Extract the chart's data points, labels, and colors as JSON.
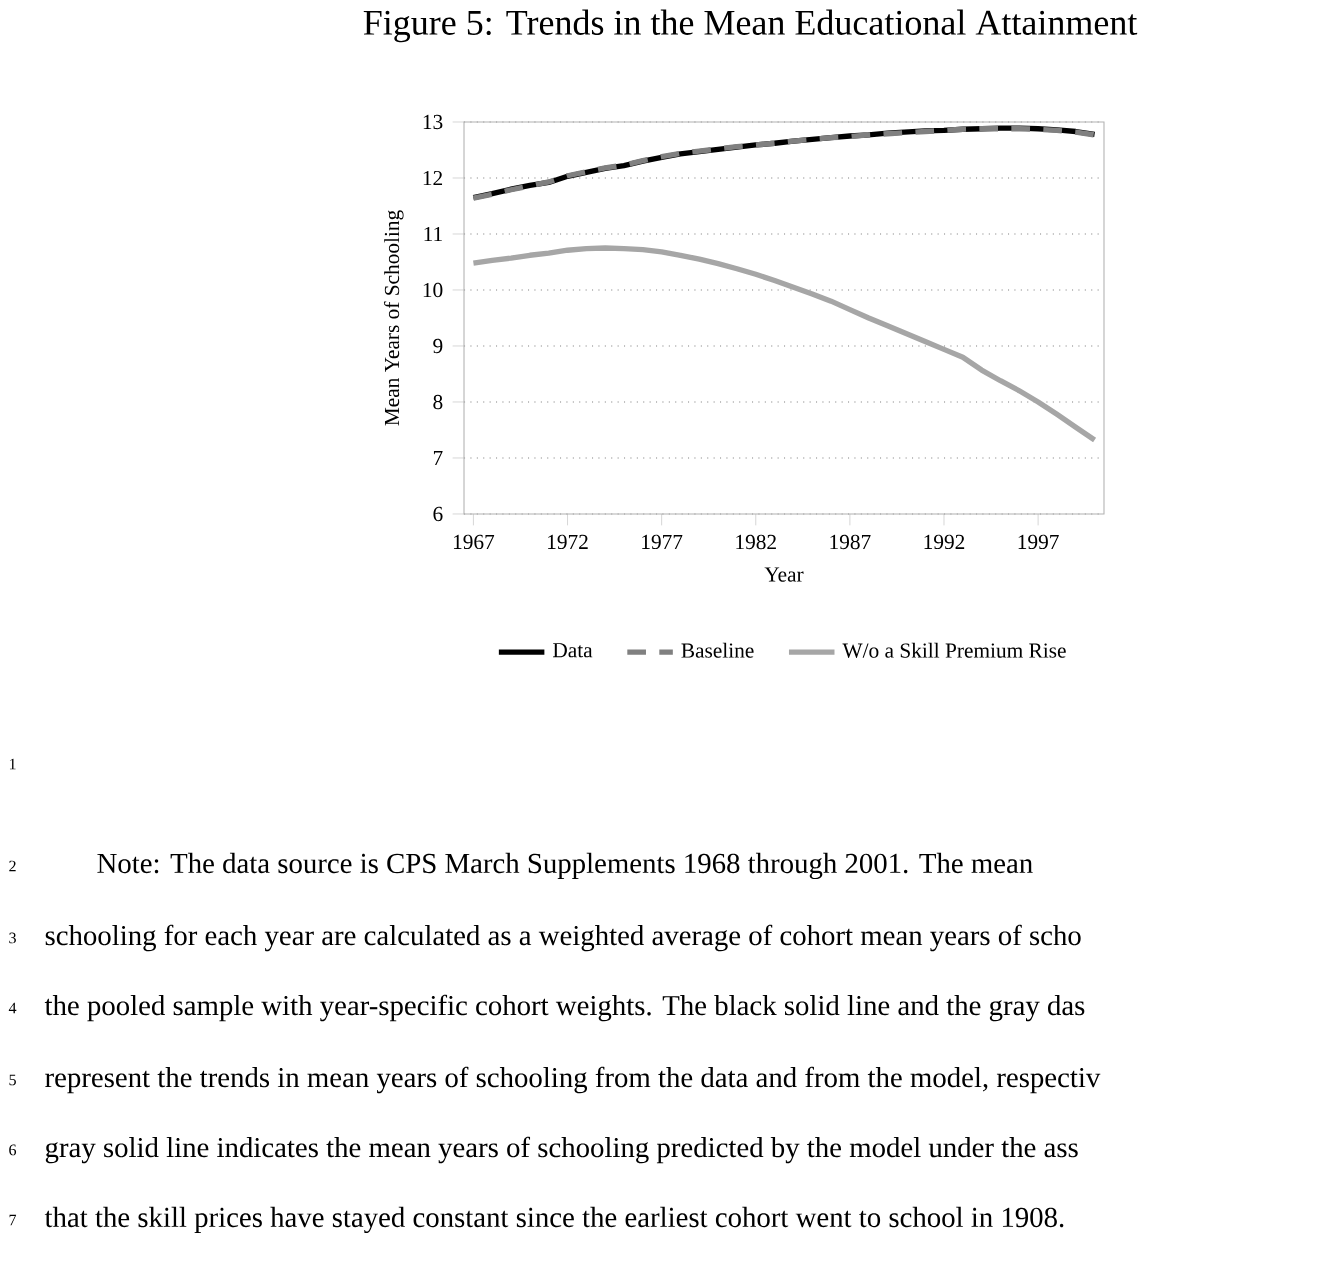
{
  "chart_data": {
    "type": "line",
    "title": "Figure 5: Trends in the Mean Educational Attainment",
    "xlabel": "Year",
    "ylabel": "Mean Years of Schooling",
    "x": [
      1967,
      1968,
      1969,
      1970,
      1971,
      1972,
      1973,
      1974,
      1975,
      1976,
      1977,
      1978,
      1979,
      1980,
      1981,
      1982,
      1983,
      1984,
      1985,
      1986,
      1987,
      1988,
      1989,
      1990,
      1991,
      1992,
      1993,
      1994,
      1995,
      1996,
      1997,
      1998,
      1999,
      2000
    ],
    "xlim": [
      1966.5,
      2000.5
    ],
    "xticks": [
      1967,
      1972,
      1977,
      1982,
      1987,
      1992,
      1997
    ],
    "ylim": [
      6,
      13
    ],
    "yticks": [
      6,
      7,
      8,
      9,
      10,
      11,
      12,
      13
    ],
    "grid": "y",
    "legend": "bottom",
    "series": [
      {
        "name": "Data",
        "color": "#000000",
        "line_style": "solid",
        "values": [
          11.65,
          11.72,
          11.8,
          11.87,
          11.92,
          12.03,
          12.1,
          12.17,
          12.22,
          12.3,
          12.37,
          12.43,
          12.47,
          12.51,
          12.55,
          12.59,
          12.62,
          12.66,
          12.69,
          12.72,
          12.75,
          12.77,
          12.8,
          12.82,
          12.84,
          12.85,
          12.87,
          12.88,
          12.89,
          12.89,
          12.88,
          12.86,
          12.83,
          12.78
        ]
      },
      {
        "name": "Baseline",
        "color": "#808080",
        "line_style": "dashed",
        "values": [
          11.64,
          11.71,
          11.79,
          11.86,
          11.93,
          12.04,
          12.11,
          12.18,
          12.23,
          12.31,
          12.38,
          12.44,
          12.48,
          12.52,
          12.56,
          12.59,
          12.62,
          12.66,
          12.69,
          12.72,
          12.74,
          12.77,
          12.79,
          12.81,
          12.83,
          12.85,
          12.87,
          12.88,
          12.88,
          12.88,
          12.87,
          12.85,
          12.82,
          12.77
        ]
      },
      {
        "name": "W/o a Skill Premium Rise",
        "color": "#a6a6a6",
        "line_style": "solid",
        "values": [
          10.48,
          10.53,
          10.57,
          10.62,
          10.66,
          10.71,
          10.74,
          10.75,
          10.74,
          10.72,
          10.68,
          10.62,
          10.55,
          10.47,
          10.38,
          10.28,
          10.17,
          10.05,
          9.93,
          9.8,
          9.65,
          9.5,
          9.36,
          9.22,
          9.08,
          8.94,
          8.8,
          8.57,
          8.38,
          8.2,
          8.0,
          7.78,
          7.55,
          7.32
        ]
      }
    ],
    "annotations": [
      "1",
      "2",
      "Note: The data source is CPS March Supplements 1968 through 2001. The mean",
      "3",
      "schooling for each year are calculated as a weighted average of cohort mean years of scho",
      "4",
      "the pooled sample with year-specific cohort weights. The black solid line and the gray das",
      "5",
      "represent the trends in mean years of schooling from the data and from the model, respectiv",
      "6",
      "gray solid line indicates the mean years of schooling predicted by the model under the ass",
      "7",
      "that the skill prices have stayed constant since the earliest cohort went to school in 1908."
    ]
  }
}
